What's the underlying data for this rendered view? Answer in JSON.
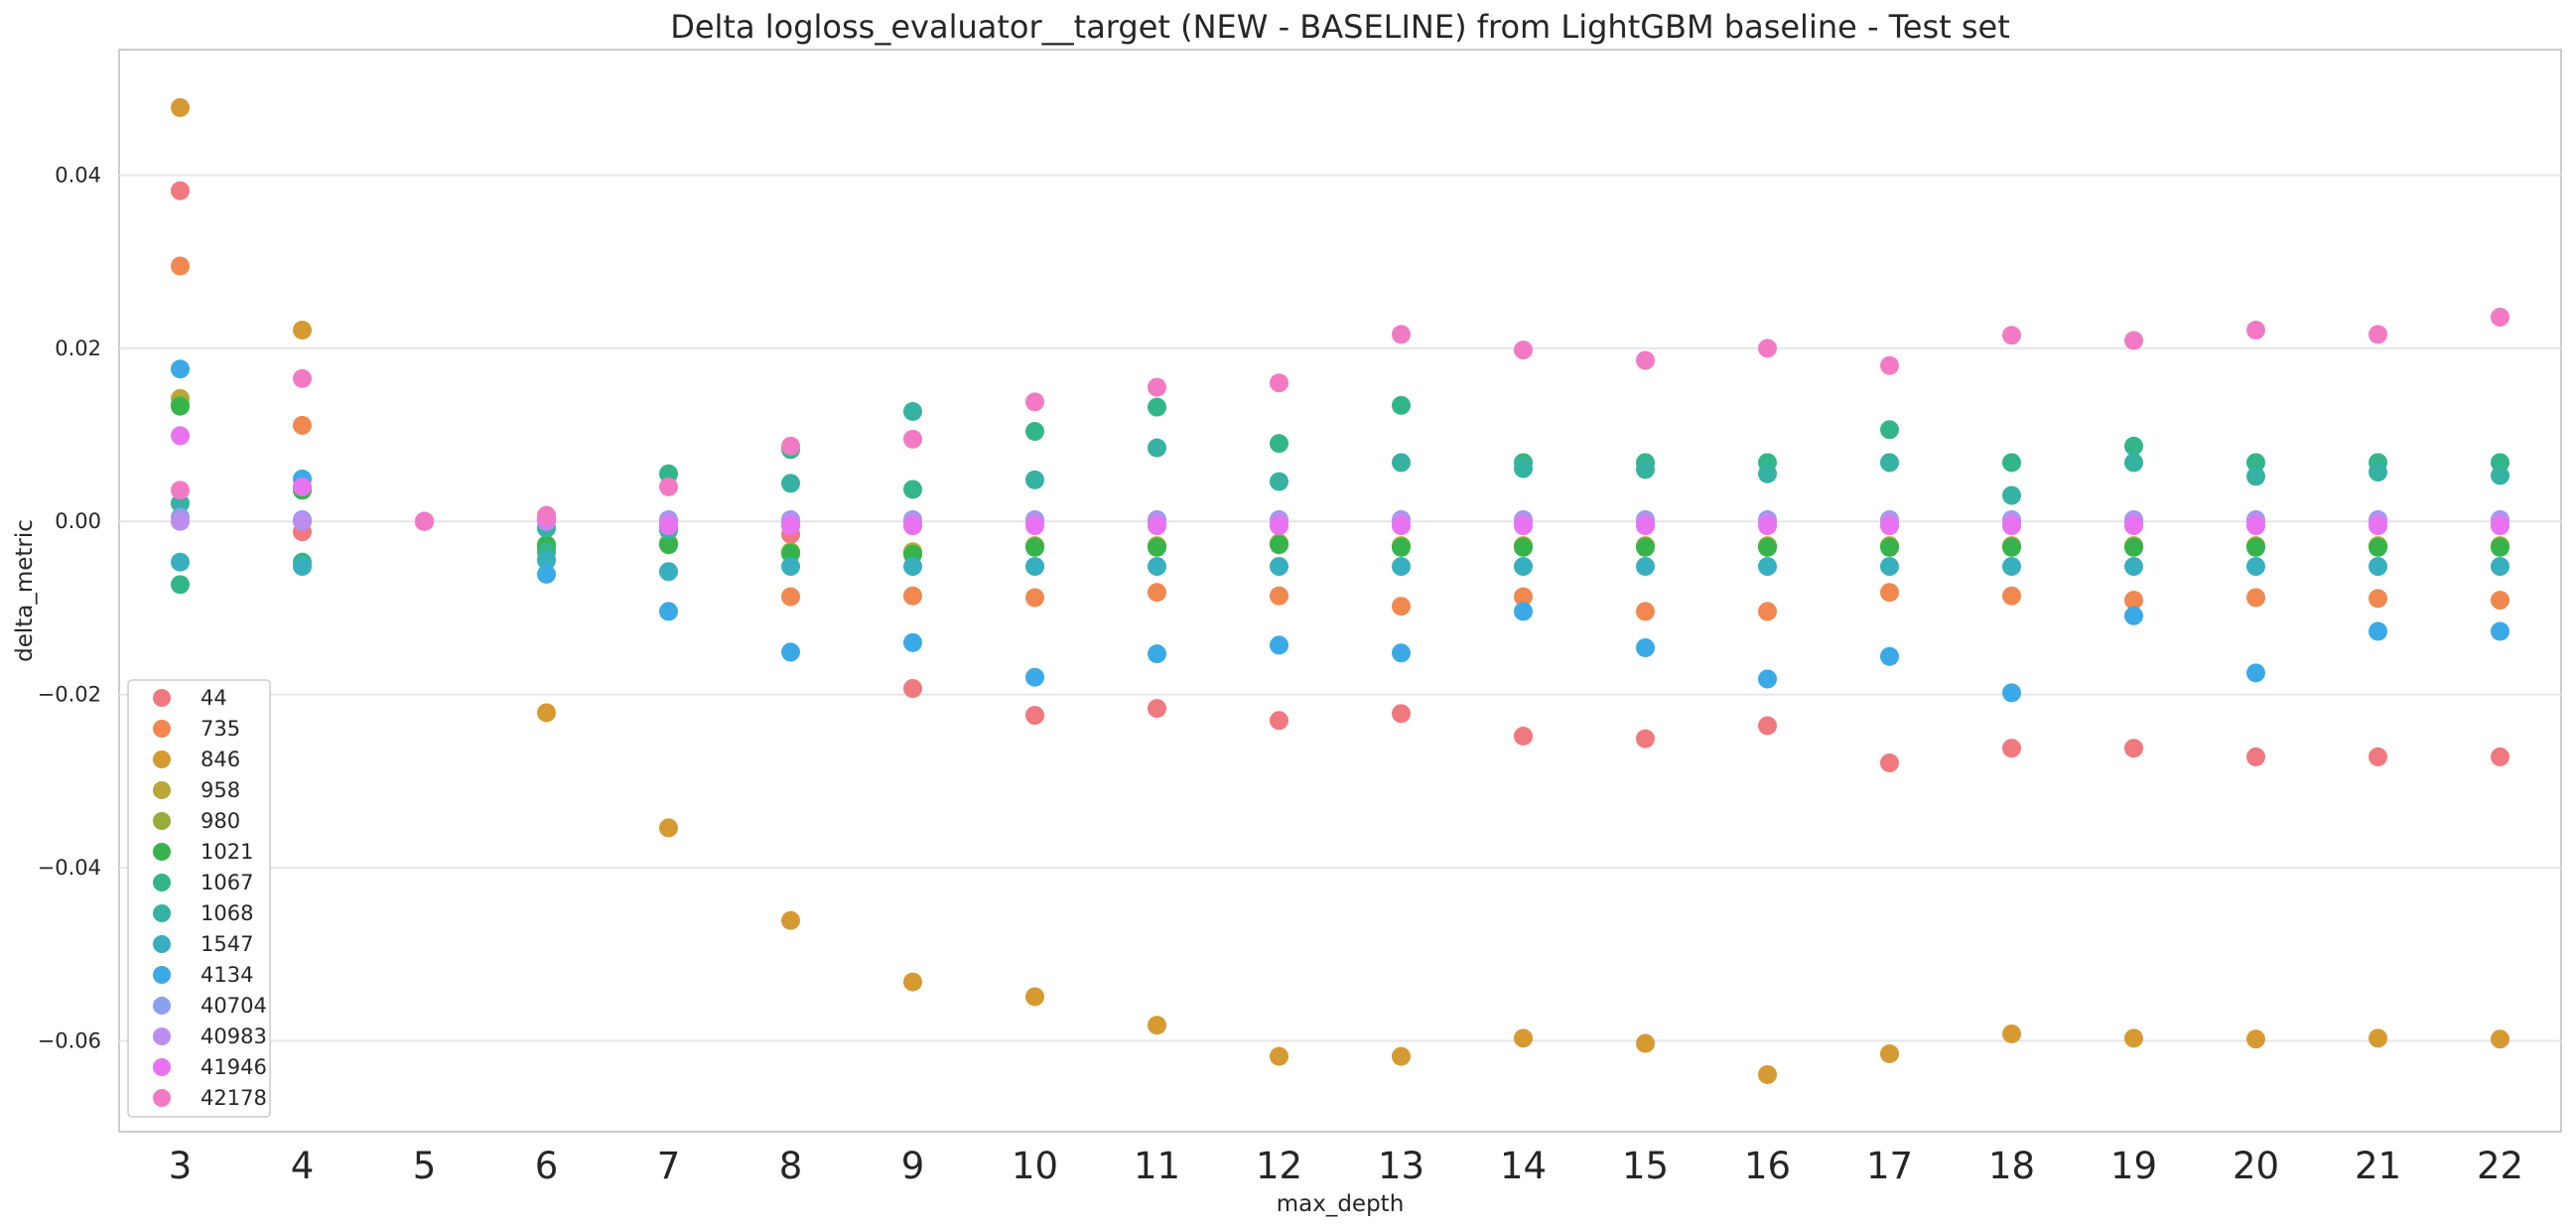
{
  "chart_data": {
    "type": "scatter",
    "title": "Delta logloss_evaluator__target (NEW - BASELINE) from LightGBM baseline - Test set",
    "xlabel": "max_depth",
    "ylabel": "delta_metric",
    "categories": [
      "3",
      "4",
      "5",
      "6",
      "7",
      "8",
      "9",
      "10",
      "11",
      "12",
      "13",
      "14",
      "15",
      "16",
      "17",
      "18",
      "19",
      "20",
      "21",
      "22"
    ],
    "y_ticks": [
      {
        "value": 0.04,
        "label": "0.04"
      },
      {
        "value": 0.02,
        "label": "0.02"
      },
      {
        "value": 0.0,
        "label": "0.00"
      },
      {
        "value": -0.02,
        "label": "−0.02"
      },
      {
        "value": -0.04,
        "label": "−0.04"
      },
      {
        "value": -0.06,
        "label": "−0.06"
      }
    ],
    "ylim": [
      -0.0705,
      0.0545
    ],
    "grid": "horizontal",
    "legend_position": "bottom-left",
    "series": [
      {
        "name": "44",
        "color": "#f0787f",
        "values": [
          0.0382,
          -0.0012,
          0.0,
          -0.0007,
          -0.0008,
          -0.0015,
          -0.0193,
          -0.0224,
          -0.0216,
          -0.023,
          -0.0222,
          -0.0248,
          -0.0251,
          -0.0236,
          -0.0279,
          -0.0262,
          -0.0262,
          -0.0272,
          -0.0272,
          -0.0272
        ]
      },
      {
        "name": "735",
        "color": "#f0884f",
        "values": [
          0.0295,
          0.0111,
          0.0,
          -0.0043,
          -0.0058,
          -0.0087,
          -0.0086,
          -0.0088,
          -0.0082,
          -0.0086,
          -0.0098,
          -0.0087,
          -0.0104,
          -0.0104,
          -0.0082,
          -0.0086,
          -0.0091,
          -0.0088,
          -0.0089,
          -0.0091
        ]
      },
      {
        "name": "846",
        "color": "#d69a33",
        "values": [
          0.0478,
          0.0221,
          0.0,
          -0.0221,
          -0.0354,
          -0.0461,
          -0.0532,
          -0.0549,
          -0.0582,
          -0.0618,
          -0.0618,
          -0.0597,
          -0.0603,
          -0.0639,
          -0.0615,
          -0.0592,
          -0.0597,
          -0.0598,
          -0.0597,
          -0.0598
        ]
      },
      {
        "name": "958",
        "color": "#bba63a",
        "values": [
          0.0142,
          0.0039,
          0.0,
          -0.003,
          -0.0025,
          -0.0035,
          -0.0035,
          -0.0028,
          -0.0028,
          -0.0025,
          -0.0028,
          -0.0028,
          -0.0028,
          -0.0028,
          -0.0028,
          -0.0028,
          -0.0028,
          -0.0028,
          -0.0028,
          -0.0028
        ]
      },
      {
        "name": "980",
        "color": "#95ad3a",
        "values": [
          0.0135,
          0.0037,
          0.0,
          -0.0028,
          -0.0026,
          -0.0036,
          -0.0037,
          -0.0029,
          -0.0029,
          -0.0026,
          -0.0029,
          -0.0029,
          -0.0029,
          -0.0029,
          -0.0029,
          -0.0029,
          -0.0029,
          -0.0029,
          -0.0029,
          -0.0029
        ]
      },
      {
        "name": "1021",
        "color": "#36b44b",
        "values": [
          0.0133,
          0.0036,
          0.0,
          -0.0027,
          -0.0027,
          -0.0037,
          -0.0038,
          -0.003,
          -0.003,
          -0.0027,
          -0.003,
          -0.003,
          -0.003,
          -0.003,
          -0.003,
          -0.003,
          -0.003,
          -0.003,
          -0.003,
          -0.003
        ]
      },
      {
        "name": "1067",
        "color": "#33b58a",
        "values": [
          -0.0073,
          -0.0047,
          0.0,
          -0.0035,
          0.0055,
          0.0083,
          0.0037,
          0.0104,
          0.0132,
          0.009,
          0.0134,
          0.0068,
          0.0068,
          0.0068,
          0.0106,
          0.0068,
          0.0087,
          0.0068,
          0.0068,
          0.0068
        ]
      },
      {
        "name": "1068",
        "color": "#35b2a2",
        "values": [
          0.0021,
          0.0,
          0.0,
          -0.0008,
          -0.001,
          0.0044,
          0.0127,
          0.0048,
          0.0085,
          0.0046,
          0.0068,
          0.0061,
          0.006,
          0.0055,
          0.0068,
          0.003,
          0.0068,
          0.0052,
          0.0057,
          0.0053
        ]
      },
      {
        "name": "1547",
        "color": "#38afbf",
        "values": [
          -0.0047,
          -0.0052,
          0.0,
          -0.0045,
          -0.0058,
          -0.0052,
          -0.0052,
          -0.0052,
          -0.0052,
          -0.0052,
          -0.0052,
          -0.0052,
          -0.0052,
          -0.0052,
          -0.0052,
          -0.0052,
          -0.0052,
          -0.0052,
          -0.0052,
          -0.0052
        ]
      },
      {
        "name": "4134",
        "color": "#3aa9e6",
        "values": [
          0.0176,
          0.0049,
          0.0,
          -0.0061,
          -0.0104,
          -0.0151,
          -0.014,
          -0.018,
          -0.0153,
          -0.0143,
          -0.0152,
          -0.0104,
          -0.0146,
          -0.0182,
          -0.0156,
          -0.0198,
          -0.0109,
          -0.0175,
          -0.0127,
          -0.0127
        ]
      },
      {
        "name": "40704",
        "color": "#8aa0ef",
        "values": [
          0.0005,
          0.0002,
          0.0,
          0.0002,
          0.0002,
          0.0002,
          0.0002,
          0.0002,
          0.0002,
          0.0002,
          0.0002,
          0.0002,
          0.0002,
          0.0002,
          0.0002,
          0.0002,
          0.0002,
          0.0002,
          0.0002,
          0.0002
        ]
      },
      {
        "name": "40983",
        "color": "#bb8ef0",
        "values": [
          0.0,
          0.0,
          0.0,
          0.0,
          0.0,
          0.0,
          0.0,
          0.0,
          0.0,
          0.0,
          0.0,
          0.0,
          0.0,
          0.0,
          0.0,
          0.0,
          0.0,
          0.0,
          0.0,
          0.0
        ]
      },
      {
        "name": "41946",
        "color": "#e872f0",
        "values": [
          0.0099,
          0.004,
          0.0,
          0.0003,
          -0.0005,
          -0.0005,
          -0.0005,
          -0.0005,
          -0.0005,
          -0.0005,
          -0.0005,
          -0.0005,
          -0.0005,
          -0.0005,
          -0.0005,
          -0.0005,
          -0.0005,
          -0.0005,
          -0.0005,
          -0.0005
        ]
      },
      {
        "name": "42178",
        "color": "#f27ac4",
        "values": [
          0.0036,
          0.0165,
          0.0,
          0.0007,
          0.004,
          0.0087,
          0.0095,
          0.0138,
          0.0155,
          0.016,
          0.0216,
          0.0198,
          0.0186,
          0.02,
          0.018,
          0.0215,
          0.0209,
          0.0221,
          0.0216,
          0.0236
        ]
      }
    ]
  }
}
